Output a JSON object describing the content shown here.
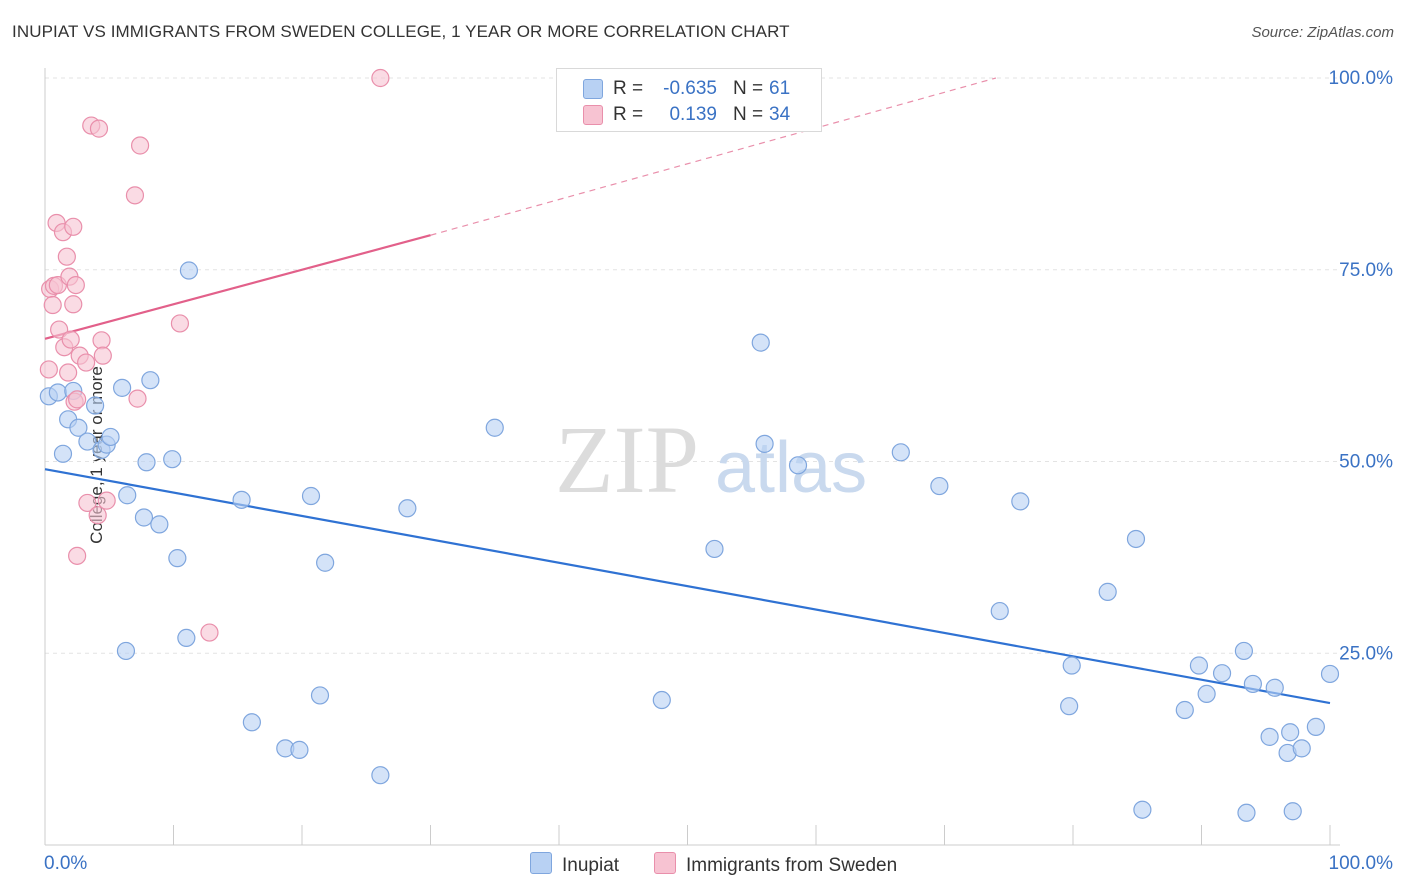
{
  "title": "INUPIAT VS IMMIGRANTS FROM SWEDEN COLLEGE, 1 YEAR OR MORE CORRELATION CHART",
  "source": "Source: ZipAtlas.com",
  "watermark": {
    "zip": "ZIP",
    "atlas": "atlas"
  },
  "colors": {
    "blue_fill": "#b8d1f3",
    "blue_stroke": "#7fa6de",
    "blue_line": "#2f72d3",
    "pink_fill": "#f7c3d2",
    "pink_stroke": "#e98fab",
    "pink_line": "#e2608a",
    "axis_label": "#3a72c4"
  },
  "legend": {
    "rows": [
      {
        "r_label": "R =",
        "r_value": "-0.635",
        "n_label": "N =",
        "n_value": "61"
      },
      {
        "r_label": "R =",
        "r_value": "0.139",
        "n_label": "N =",
        "n_value": "34"
      }
    ]
  },
  "bottom_legend": {
    "inupiat": "Inupiat",
    "sweden": "Immigrants from Sweden"
  },
  "chart_data": {
    "type": "scatter",
    "title": "INUPIAT VS IMMIGRANTS FROM SWEDEN COLLEGE, 1 YEAR OR MORE CORRELATION CHART",
    "xlabel": "",
    "ylabel": "College, 1 year or more",
    "xlim": [
      0,
      100
    ],
    "ylim": [
      0,
      100
    ],
    "x_tick_labels": [
      "0.0%",
      "100.0%"
    ],
    "y_tick_labels": [
      "100.0%",
      "75.0%",
      "50.0%",
      "25.0%"
    ],
    "y_ticks": [
      100,
      75,
      50,
      25
    ],
    "grid": true,
    "legend_position": "top-center",
    "series": [
      {
        "name": "Inupiat",
        "r": -0.635,
        "n": 61,
        "trend": {
          "x": [
            0,
            100
          ],
          "y": [
            49.0,
            18.5
          ]
        },
        "points": [
          [
            0.3,
            58.5
          ],
          [
            1.0,
            59.0
          ],
          [
            1.4,
            51.0
          ],
          [
            1.8,
            55.5
          ],
          [
            2.2,
            59.2
          ],
          [
            2.6,
            54.4
          ],
          [
            3.3,
            52.6
          ],
          [
            3.9,
            57.3
          ],
          [
            4.4,
            51.5
          ],
          [
            4.8,
            52.2
          ],
          [
            5.1,
            53.2
          ],
          [
            6.0,
            59.6
          ],
          [
            6.4,
            45.6
          ],
          [
            7.7,
            42.7
          ],
          [
            7.9,
            49.9
          ],
          [
            8.2,
            60.6
          ],
          [
            8.9,
            41.8
          ],
          [
            9.9,
            50.3
          ],
          [
            10.3,
            37.4
          ],
          [
            11.0,
            27.0
          ],
          [
            11.2,
            74.9
          ],
          [
            6.3,
            25.3
          ],
          [
            15.3,
            45.0
          ],
          [
            16.1,
            16.0
          ],
          [
            18.7,
            12.6
          ],
          [
            19.8,
            12.4
          ],
          [
            20.7,
            45.5
          ],
          [
            21.4,
            19.5
          ],
          [
            21.8,
            36.8
          ],
          [
            26.1,
            9.1
          ],
          [
            28.2,
            43.9
          ],
          [
            35.0,
            54.4
          ],
          [
            48.0,
            18.9
          ],
          [
            52.1,
            38.6
          ],
          [
            55.7,
            65.5
          ],
          [
            56.0,
            52.3
          ],
          [
            58.6,
            49.5
          ],
          [
            66.6,
            51.2
          ],
          [
            69.6,
            46.8
          ],
          [
            74.3,
            30.5
          ],
          [
            75.9,
            44.8
          ],
          [
            79.7,
            18.1
          ],
          [
            79.9,
            23.4
          ],
          [
            82.7,
            33.0
          ],
          [
            84.9,
            39.9
          ],
          [
            85.4,
            4.6
          ],
          [
            88.7,
            17.6
          ],
          [
            89.8,
            23.4
          ],
          [
            90.4,
            19.7
          ],
          [
            91.6,
            22.4
          ],
          [
            93.3,
            25.3
          ],
          [
            93.5,
            4.2
          ],
          [
            94.0,
            21.0
          ],
          [
            95.3,
            14.1
          ],
          [
            95.7,
            20.5
          ],
          [
            96.7,
            12.0
          ],
          [
            96.9,
            14.7
          ],
          [
            97.1,
            4.4
          ],
          [
            97.8,
            12.6
          ],
          [
            98.9,
            15.4
          ],
          [
            100.0,
            22.3
          ]
        ]
      },
      {
        "name": "Immigrants from Sweden",
        "r": 0.139,
        "n": 34,
        "trend": {
          "x": [
            0,
            30
          ],
          "y": [
            66.0,
            79.5
          ]
        },
        "trend_extension": {
          "x": [
            30,
            74
          ],
          "y": [
            79.5,
            100.0
          ]
        },
        "points": [
          [
            0.3,
            62.0
          ],
          [
            0.4,
            72.5
          ],
          [
            0.6,
            70.4
          ],
          [
            0.7,
            72.9
          ],
          [
            0.9,
            81.1
          ],
          [
            1.0,
            73.0
          ],
          [
            1.1,
            67.2
          ],
          [
            1.4,
            79.9
          ],
          [
            1.5,
            64.9
          ],
          [
            1.8,
            61.6
          ],
          [
            1.7,
            76.7
          ],
          [
            1.9,
            74.1
          ],
          [
            2.0,
            65.9
          ],
          [
            2.2,
            70.5
          ],
          [
            2.2,
            80.6
          ],
          [
            2.3,
            57.8
          ],
          [
            2.4,
            73.0
          ],
          [
            2.5,
            58.1
          ],
          [
            2.5,
            37.7
          ],
          [
            2.7,
            63.8
          ],
          [
            3.2,
            62.9
          ],
          [
            3.3,
            44.6
          ],
          [
            3.6,
            93.8
          ],
          [
            4.1,
            43.0
          ],
          [
            4.2,
            93.4
          ],
          [
            4.4,
            65.8
          ],
          [
            4.5,
            63.8
          ],
          [
            4.8,
            44.9
          ],
          [
            7.0,
            84.7
          ],
          [
            7.2,
            58.2
          ],
          [
            7.4,
            91.2
          ],
          [
            10.5,
            68.0
          ],
          [
            12.8,
            27.7
          ],
          [
            26.1,
            100.0
          ]
        ]
      }
    ]
  }
}
